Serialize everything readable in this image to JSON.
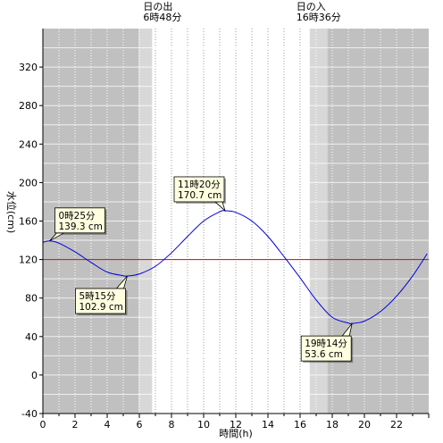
{
  "chart_data": {
    "type": "line",
    "xlabel": "時間(h)",
    "ylabel": "水位(cm)",
    "xlim": [
      0,
      24
    ],
    "ylim": [
      -40,
      360
    ],
    "xticks": [
      0,
      2,
      4,
      6,
      8,
      10,
      12,
      14,
      16,
      18,
      20,
      22
    ],
    "yticks": [
      -40,
      0,
      40,
      80,
      120,
      160,
      200,
      240,
      280,
      320
    ],
    "grid": true,
    "series": [
      {
        "color": "#0000dd",
        "x": [
          0,
          0.417,
          1,
          2,
          3,
          4,
          5,
          5.25,
          6,
          7,
          8,
          9,
          10,
          11,
          11.333,
          12,
          13,
          14,
          15,
          16,
          17,
          18,
          19,
          19.233,
          20,
          21,
          22,
          23,
          23.9
        ],
        "y": [
          138,
          139.3,
          137,
          128,
          117,
          107,
          103.2,
          102.9,
          105,
          113,
          127,
          144,
          160,
          169.7,
          170.7,
          169,
          160,
          144,
          123,
          101,
          78,
          60,
          54,
          53.6,
          56,
          66,
          82,
          103,
          126
        ]
      }
    ],
    "reference_line": {
      "y": 120,
      "color": "#dd0000"
    },
    "sun": {
      "sunrise_label": "日の出",
      "sunrise_time": "6時48分",
      "sunrise_hour": 6.8,
      "sunset_label": "日の入",
      "sunset_time": "16時36分",
      "sunset_hour": 16.6,
      "twilight_before_hours": 0.85,
      "twilight_after_hours": 1.1
    },
    "annotations": [
      {
        "x": 0.417,
        "y": 139.3,
        "time": "0時25分",
        "value": "139.3 cm"
      },
      {
        "x": 5.25,
        "y": 102.9,
        "time": "5時15分",
        "value": "102.9 cm"
      },
      {
        "x": 11.333,
        "y": 170.7,
        "time": "11時20分",
        "value": "170.7 cm"
      },
      {
        "x": 19.233,
        "y": 53.6,
        "time": "19時14分",
        "value": "53.6 cm"
      }
    ],
    "colors": {
      "night": "#c0c0c0",
      "twilight": "#d8d8d8",
      "day": "#ffffff",
      "callout_fill": "#ffffe0"
    }
  }
}
